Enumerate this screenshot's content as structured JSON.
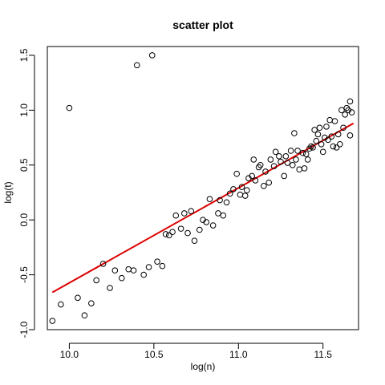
{
  "chart_data": {
    "type": "scatter",
    "title": "scatter plot",
    "xlabel": "log(n)",
    "ylabel": "log(t)",
    "xlim": [
      9.87,
      11.71
    ],
    "ylim": [
      -1.0,
      1.58
    ],
    "x_ticks": [
      10.0,
      10.5,
      11.0,
      11.5
    ],
    "x_tick_labels": [
      "10.0",
      "10.5",
      "11.0",
      "11.5"
    ],
    "y_ticks": [
      -1.0,
      -0.5,
      0.0,
      0.5,
      1.0,
      1.5
    ],
    "y_tick_labels": [
      "-1.0",
      "-0.5",
      "0.0",
      "0.5",
      "1.0",
      "1.5"
    ],
    "grid": false,
    "legend": "none",
    "point_style": "open-circle",
    "point_color": "#000000",
    "fit_line": {
      "color": "#dd0000",
      "x": [
        9.9,
        11.68
      ],
      "y": [
        -0.66,
        0.88
      ]
    },
    "x": [
      9.9,
      9.95,
      10.0,
      10.05,
      10.09,
      10.13,
      10.16,
      10.2,
      10.24,
      10.27,
      10.31,
      10.35,
      10.38,
      10.4,
      10.44,
      10.47,
      10.49,
      10.52,
      10.55,
      10.57,
      10.59,
      10.61,
      10.63,
      10.66,
      10.68,
      10.7,
      10.72,
      10.74,
      10.77,
      10.79,
      10.81,
      10.83,
      10.85,
      10.88,
      10.89,
      10.91,
      10.93,
      10.95,
      10.97,
      10.99,
      11.01,
      11.02,
      11.04,
      11.05,
      11.06,
      11.08,
      11.09,
      11.1,
      11.12,
      11.13,
      11.15,
      11.16,
      11.18,
      11.19,
      11.21,
      11.22,
      11.24,
      11.25,
      11.27,
      11.28,
      11.29,
      11.31,
      11.32,
      11.33,
      11.34,
      11.35,
      11.36,
      11.38,
      11.39,
      11.4,
      11.41,
      11.42,
      11.43,
      11.44,
      11.45,
      11.46,
      11.47,
      11.48,
      11.49,
      11.5,
      11.51,
      11.52,
      11.53,
      11.54,
      11.55,
      11.56,
      11.57,
      11.58,
      11.59,
      11.6,
      11.61,
      11.62,
      11.63,
      11.64,
      11.65,
      11.66,
      11.66,
      11.67
    ],
    "y": [
      -0.92,
      -0.77,
      1.02,
      -0.71,
      -0.87,
      -0.76,
      -0.55,
      -0.4,
      -0.62,
      -0.46,
      -0.53,
      -0.45,
      -0.46,
      1.41,
      -0.5,
      -0.43,
      1.5,
      -0.38,
      -0.42,
      -0.13,
      -0.14,
      -0.11,
      0.04,
      -0.08,
      0.06,
      -0.12,
      0.08,
      -0.19,
      -0.09,
      0.0,
      -0.02,
      0.19,
      -0.05,
      0.06,
      0.18,
      0.04,
      0.16,
      0.24,
      0.28,
      0.42,
      0.23,
      0.3,
      0.22,
      0.27,
      0.38,
      0.4,
      0.55,
      0.36,
      0.48,
      0.5,
      0.31,
      0.44,
      0.34,
      0.55,
      0.49,
      0.62,
      0.58,
      0.53,
      0.4,
      0.58,
      0.52,
      0.63,
      0.5,
      0.79,
      0.55,
      0.63,
      0.46,
      0.61,
      0.47,
      0.6,
      0.55,
      0.65,
      0.67,
      0.66,
      0.82,
      0.72,
      0.78,
      0.84,
      0.69,
      0.62,
      0.75,
      0.85,
      0.73,
      0.91,
      0.76,
      0.67,
      0.9,
      0.66,
      0.78,
      0.69,
      1.0,
      0.84,
      0.96,
      1.02,
      1.0,
      0.77,
      1.08,
      0.98
    ]
  }
}
